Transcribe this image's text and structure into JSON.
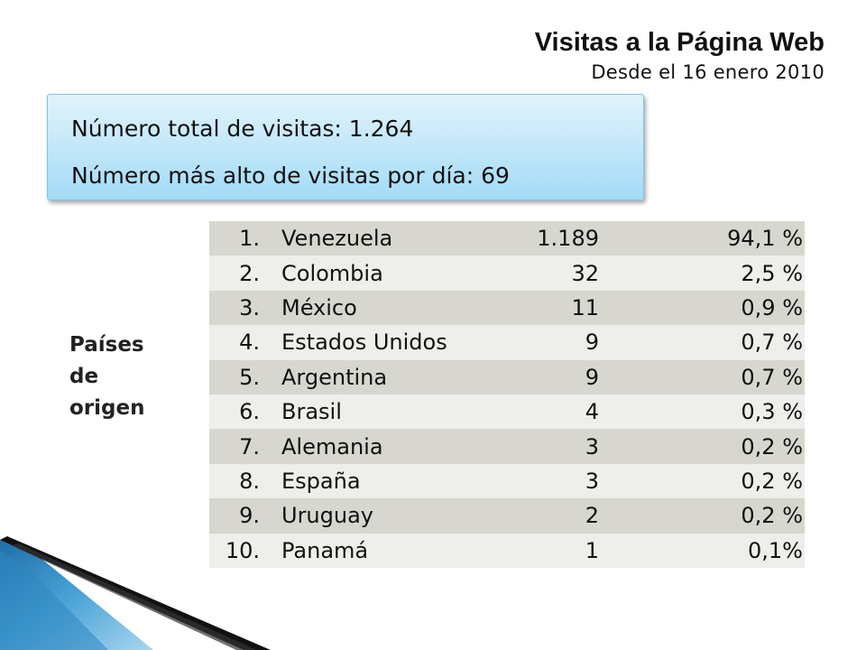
{
  "header": {
    "title": "Visitas a la Página Web",
    "subtitle": "Desde el 16 enero 2010"
  },
  "summary": {
    "total_visits": "Número total de visitas: 1.264",
    "max_daily_visits": "Número más alto de visitas por día: 69"
  },
  "side_label": [
    "Países",
    "de",
    "origen"
  ],
  "countries": [
    {
      "rank": "1.",
      "name": "Venezuela",
      "visits": "1.189",
      "percent": "94,1 %"
    },
    {
      "rank": "2.",
      "name": "Colombia",
      "visits": "32",
      "percent": "2,5 %"
    },
    {
      "rank": "3.",
      "name": "México",
      "visits": "11",
      "percent": "0,9 %"
    },
    {
      "rank": "4.",
      "name": "Estados Unidos",
      "visits": "9",
      "percent": "0,7 %"
    },
    {
      "rank": "5.",
      "name": "Argentina",
      "visits": "9",
      "percent": "0,7 %"
    },
    {
      "rank": "6.",
      "name": "Brasil",
      "visits": "4",
      "percent": "0,3 %"
    },
    {
      "rank": "7.",
      "name": "Alemania",
      "visits": "3",
      "percent": "0,2 %"
    },
    {
      "rank": "8.",
      "name": "España",
      "visits": "3",
      "percent": "0,2 %"
    },
    {
      "rank": "9.",
      "name": "Uruguay",
      "visits": "2",
      "percent": "0,2 %"
    },
    {
      "rank": "10.",
      "name": "Panamá",
      "visits": "1",
      "percent": "0,1%"
    }
  ],
  "colors": {
    "row_dark": "#d7d7cf",
    "row_light": "#eeeeea",
    "box_fill": "#bfe6f9",
    "box_border": "#7cc7ea",
    "accent_blue": "#3d8fc4"
  }
}
